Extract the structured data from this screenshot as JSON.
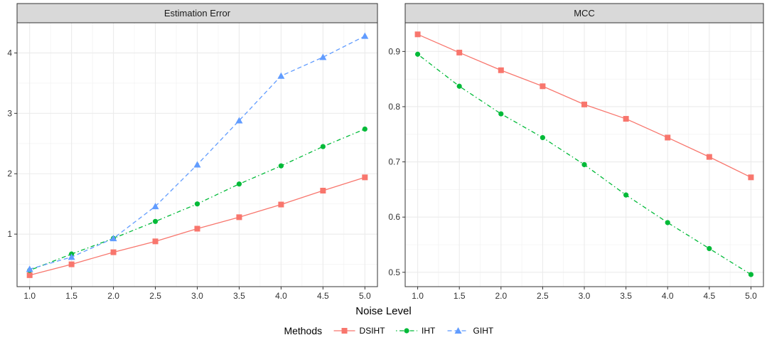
{
  "xlabel": "Noise Level",
  "legend": {
    "title": "Methods",
    "position": "bottom",
    "items": [
      {
        "name": "DSIHT",
        "color": "#F8766D",
        "shape": "square",
        "linetype": "solid"
      },
      {
        "name": "IHT",
        "color": "#00BA38",
        "shape": "circle",
        "linetype": "dotdash"
      },
      {
        "name": "GIHT",
        "color": "#619CFF",
        "shape": "triangle",
        "linetype": "dashed"
      }
    ]
  },
  "chart_data": [
    {
      "type": "line",
      "title": "Estimation Error",
      "x": [
        1.0,
        1.5,
        2.0,
        2.5,
        3.0,
        3.5,
        4.0,
        4.5,
        5.0
      ],
      "xticks": [
        "1.0",
        "1.5",
        "2.0",
        "2.5",
        "3.0",
        "3.5",
        "4.0",
        "4.5",
        "5.0"
      ],
      "xlim": [
        0.85,
        5.15
      ],
      "yticks": [
        "1",
        "2",
        "3",
        "4"
      ],
      "ytick_values": [
        1,
        2,
        3,
        4
      ],
      "ylim": [
        0.13,
        4.5
      ],
      "grid": true,
      "series": [
        {
          "name": "DSIHT",
          "values": [
            0.32,
            0.5,
            0.7,
            0.88,
            1.09,
            1.28,
            1.49,
            1.72,
            1.94
          ]
        },
        {
          "name": "IHT",
          "values": [
            0.4,
            0.67,
            0.93,
            1.21,
            1.5,
            1.83,
            2.13,
            2.45,
            2.74
          ]
        },
        {
          "name": "GIHT",
          "values": [
            0.42,
            0.62,
            0.93,
            1.46,
            2.15,
            2.88,
            3.62,
            3.93,
            4.28
          ]
        }
      ]
    },
    {
      "type": "line",
      "title": "MCC",
      "x": [
        1.0,
        1.5,
        2.0,
        2.5,
        3.0,
        3.5,
        4.0,
        4.5,
        5.0
      ],
      "xticks": [
        "1.0",
        "1.5",
        "2.0",
        "2.5",
        "3.0",
        "3.5",
        "4.0",
        "4.5",
        "5.0"
      ],
      "xlim": [
        0.85,
        5.15
      ],
      "yticks": [
        "0.5",
        "0.6",
        "0.7",
        "0.8",
        "0.9"
      ],
      "ytick_values": [
        0.5,
        0.6,
        0.7,
        0.8,
        0.9
      ],
      "ylim": [
        0.474,
        0.952
      ],
      "grid": true,
      "series": [
        {
          "name": "DSIHT",
          "values": [
            0.931,
            0.898,
            0.866,
            0.837,
            0.804,
            0.778,
            0.744,
            0.709,
            0.672
          ]
        },
        {
          "name": "IHT",
          "values": [
            0.895,
            0.837,
            0.787,
            0.744,
            0.695,
            0.64,
            0.59,
            0.543,
            0.496
          ]
        }
      ]
    }
  ]
}
